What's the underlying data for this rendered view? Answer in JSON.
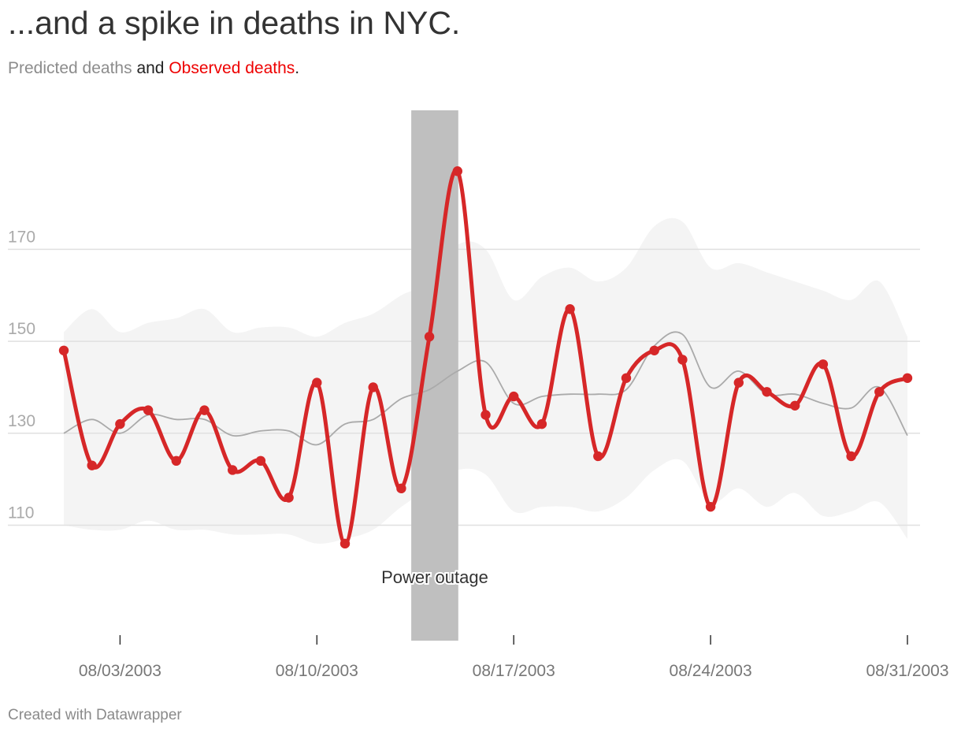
{
  "title": "...and a spike in deaths in NYC.",
  "subtitle": {
    "predicted_label": "Predicted deaths",
    "connector": "and",
    "observed_label": "Observed deaths",
    "end": ".",
    "predicted_color": "#8c8c8c",
    "observed_color": "#ee0000"
  },
  "footer": "Created with Datawrapper",
  "chart_data": {
    "type": "line",
    "x_start": "08/01/2003",
    "x": [
      "08/01/2003",
      "08/02/2003",
      "08/03/2003",
      "08/04/2003",
      "08/05/2003",
      "08/06/2003",
      "08/07/2003",
      "08/08/2003",
      "08/09/2003",
      "08/10/2003",
      "08/11/2003",
      "08/12/2003",
      "08/13/2003",
      "08/14/2003",
      "08/15/2003",
      "08/16/2003",
      "08/17/2003",
      "08/18/2003",
      "08/19/2003",
      "08/20/2003",
      "08/21/2003",
      "08/22/2003",
      "08/23/2003",
      "08/24/2003",
      "08/25/2003",
      "08/26/2003",
      "08/27/2003",
      "08/28/2003",
      "08/29/2003",
      "08/30/2003",
      "08/31/2003"
    ],
    "series": [
      {
        "name": "Observed deaths",
        "color": "#d62728",
        "values": [
          148,
          123,
          132,
          135,
          124,
          135,
          122,
          124,
          116,
          141,
          106,
          140,
          118,
          151,
          187,
          134,
          138,
          132,
          157,
          125,
          142,
          148,
          146,
          114,
          141,
          139,
          136,
          145,
          125,
          139,
          142
        ]
      },
      {
        "name": "Predicted deaths",
        "color": "#aaaaaa",
        "values": [
          130,
          133,
          130,
          134,
          133,
          133,
          129.5,
          130.5,
          130.5,
          127.5,
          132,
          133,
          137.5,
          139.5,
          143.5,
          145.5,
          136.5,
          138,
          138.5,
          138.5,
          139.5,
          149,
          151.5,
          140,
          143.5,
          138.5,
          138.5,
          136.5,
          135.5,
          140,
          129.5
        ]
      }
    ],
    "band": {
      "upper": [
        152,
        157,
        152,
        154,
        155,
        157,
        152,
        153,
        153,
        151,
        154,
        156,
        160,
        163,
        171,
        170,
        159,
        164,
        166,
        163,
        166,
        175,
        176,
        166,
        167,
        165,
        163,
        161,
        159,
        163,
        151
      ],
      "lower": [
        110,
        109,
        109,
        111,
        109,
        109,
        108,
        108,
        108,
        106,
        107,
        109,
        114,
        118,
        122,
        121,
        113,
        114,
        114,
        113,
        116,
        122,
        124,
        115,
        118,
        114,
        117,
        112,
        113,
        115,
        107
      ],
      "color": "#f4f4f4"
    },
    "highlight": {
      "from": "08/14/2003",
      "to": "08/15/2003",
      "label": "Power outage",
      "color": "#bfbfbf"
    },
    "y_ticks": [
      110,
      130,
      150,
      170
    ],
    "ylim": [
      88,
      200
    ],
    "x_ticks": [
      "08/03/2003",
      "08/10/2003",
      "08/17/2003",
      "08/24/2003",
      "08/31/2003"
    ],
    "xlabel": "",
    "ylabel": "",
    "grid": true
  }
}
